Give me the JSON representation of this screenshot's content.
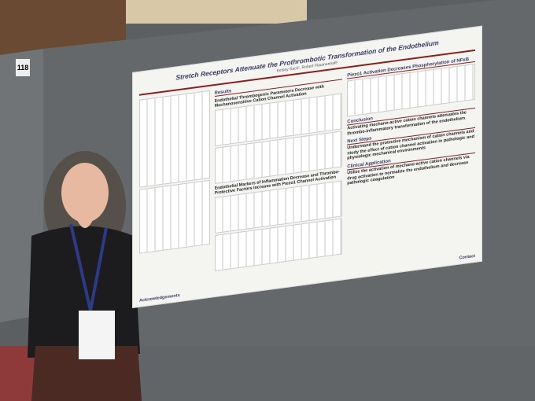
{
  "booth_number": "118",
  "poster": {
    "title": "Stretch Receptors Attenuate the Prothrombotic Transformation of the Endothelium",
    "authors": "Kelsey Sack¹, Robert Flaumenhaft¹",
    "left_heading": "Results",
    "left_sections": [
      "Endothelial Thrombogenic Parameters Decrease with Mechanosensitive Cation Channel Activation",
      "Endothelial Markers of Inflammation Decrease and Thrombo-Protective Factors Increase with Piezo1 Channel Activation"
    ],
    "right_sections": [
      {
        "heading": "Piezo1 Activation Decreases Phosphorylation of NFκB",
        "text": null
      },
      {
        "heading": "Conclusion",
        "text": "Activating mechano-active cation channels attenuates the thrombo-inflammatory transformation of the endothelium"
      },
      {
        "heading": "Next Steps",
        "text": "Understand the protective mechanism of cation channels and study the effect of cation channel activation in pathologic and physiologic mechanical environments"
      },
      {
        "heading": "Clinical Application",
        "text": "Utilize the activation of mechano-active cation channels via drug activation to normalize the endothelium and decrease pathologic coagulation"
      }
    ],
    "footer": [
      "Acknowledgements",
      "Contact"
    ]
  }
}
